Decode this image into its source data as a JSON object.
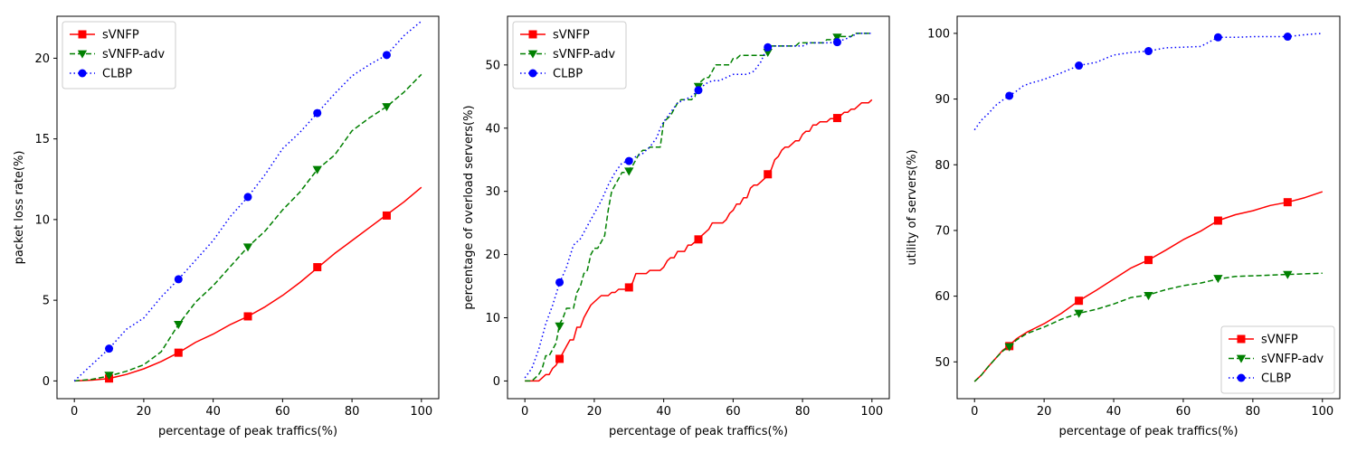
{
  "colors": {
    "sVNFP": "#ff0000",
    "sVNFP-adv": "#008000",
    "CLBP": "#0000ff"
  },
  "chart_data": [
    {
      "type": "line",
      "xlabel": "percentage of peak traffics(%)",
      "ylabel": "packet loss rate(%)",
      "xlim": [
        -5,
        105
      ],
      "ylim": [
        -1.1,
        22.6
      ],
      "xticks": [
        0,
        20,
        40,
        60,
        80,
        100
      ],
      "yticks": [
        0,
        5,
        10,
        15,
        20
      ],
      "legend": "top-left",
      "grid": false,
      "series": [
        {
          "name": "sVNFP",
          "line_style": "solid",
          "marker": "square",
          "color": "#ff0000",
          "x": [
            0,
            5,
            10,
            15,
            20,
            25,
            30,
            35,
            40,
            45,
            50,
            55,
            60,
            65,
            70,
            75,
            80,
            85,
            90,
            95,
            100
          ],
          "y": [
            0,
            0.05,
            0.15,
            0.4,
            0.75,
            1.2,
            1.75,
            2.4,
            2.9,
            3.5,
            4.0,
            4.6,
            5.3,
            6.1,
            7.0,
            7.9,
            8.7,
            9.5,
            10.3,
            11.1,
            12.0
          ],
          "markers_x": [
            10,
            30,
            50,
            70,
            90
          ],
          "markers_y": [
            0.15,
            1.75,
            4.0,
            7.05,
            10.25
          ]
        },
        {
          "name": "sVNFP-adv",
          "line_style": "dashed",
          "marker": "triangle-down",
          "color": "#008000",
          "x": [
            0,
            5,
            10,
            15,
            20,
            25,
            30,
            35,
            40,
            45,
            50,
            55,
            60,
            65,
            70,
            75,
            80,
            85,
            90,
            95,
            100
          ],
          "y": [
            0,
            0.1,
            0.3,
            0.6,
            1.0,
            1.8,
            3.5,
            4.9,
            5.9,
            7.1,
            8.3,
            9.3,
            10.6,
            11.7,
            13.1,
            14.0,
            15.5,
            16.3,
            17.0,
            17.9,
            19.0
          ],
          "markers_x": [
            10,
            30,
            50,
            70,
            90
          ],
          "markers_y": [
            0.35,
            3.5,
            8.3,
            13.1,
            17.0
          ]
        },
        {
          "name": "CLBP",
          "line_style": "dotted",
          "marker": "circle",
          "color": "#0000ff",
          "x": [
            0,
            5,
            10,
            15,
            20,
            25,
            30,
            35,
            40,
            45,
            50,
            55,
            60,
            65,
            70,
            75,
            80,
            85,
            90,
            95,
            100
          ],
          "y": [
            0,
            1.0,
            2.0,
            3.2,
            3.9,
            5.2,
            6.3,
            7.5,
            8.7,
            10.2,
            11.4,
            12.8,
            14.4,
            15.4,
            16.6,
            17.8,
            18.9,
            19.6,
            20.2,
            21.4,
            22.3
          ],
          "markers_x": [
            10,
            30,
            50,
            70,
            90
          ],
          "markers_y": [
            2.0,
            6.3,
            11.4,
            16.6,
            20.2
          ]
        }
      ]
    },
    {
      "type": "line",
      "xlabel": "percentage of peak traffics(%)",
      "ylabel": "percentage of overload servers(%)",
      "xlim": [
        -5,
        105
      ],
      "ylim": [
        -2.8,
        57.7
      ],
      "xticks": [
        0,
        20,
        40,
        60,
        80,
        100
      ],
      "yticks": [
        0,
        10,
        20,
        30,
        40,
        50
      ],
      "legend": "top-left",
      "grid": false,
      "series": [
        {
          "name": "sVNFP",
          "line_style": "solid",
          "marker": "square",
          "color": "#ff0000",
          "x": [
            0,
            2,
            4,
            5,
            6,
            7,
            8,
            9,
            10,
            11,
            12,
            13,
            14,
            15,
            16,
            17,
            18,
            19,
            20,
            21,
            22,
            23,
            24,
            25,
            26,
            27,
            28,
            29,
            30,
            31,
            32,
            33,
            34,
            35,
            36,
            37,
            38,
            39,
            40,
            41,
            42,
            43,
            44,
            45,
            46,
            47,
            48,
            49,
            50,
            51,
            52,
            53,
            54,
            55,
            56,
            57,
            58,
            59,
            60,
            61,
            62,
            63,
            64,
            65,
            66,
            67,
            68,
            69,
            70,
            71,
            72,
            73,
            74,
            75,
            76,
            77,
            78,
            79,
            80,
            81,
            82,
            83,
            84,
            85,
            86,
            87,
            88,
            89,
            90,
            91,
            92,
            93,
            94,
            95,
            96,
            97,
            98,
            99,
            100
          ],
          "y": [
            0,
            0,
            0,
            0.5,
            1,
            1,
            2,
            2.5,
            3.5,
            4.5,
            5.5,
            6.5,
            6.5,
            8.5,
            8.5,
            10,
            11,
            12,
            12.5,
            13,
            13.5,
            13.5,
            13.5,
            14,
            14,
            14.5,
            14.5,
            14.5,
            15,
            15.5,
            17,
            17,
            17,
            17,
            17.5,
            17.5,
            17.5,
            17.5,
            18,
            19,
            19.5,
            19.5,
            20.5,
            20.5,
            20.5,
            21.5,
            21.5,
            22,
            22.5,
            23,
            23.5,
            24,
            25,
            25,
            25,
            25,
            25.5,
            26.5,
            27,
            28,
            28,
            29,
            29,
            30.5,
            31,
            31,
            31.5,
            32,
            32.5,
            33.5,
            35,
            35.5,
            36.5,
            37,
            37,
            37.5,
            38,
            38,
            39,
            39.5,
            39.5,
            40.5,
            40.5,
            41,
            41,
            41,
            41.5,
            41.5,
            41.5,
            42,
            42.5,
            42.5,
            43,
            43,
            43.5,
            44,
            44,
            44,
            44.5
          ],
          "markers_x": [
            10,
            30,
            50,
            70,
            90
          ],
          "markers_y": [
            3.5,
            14.8,
            22.4,
            32.7,
            41.6
          ]
        },
        {
          "name": "sVNFP-adv",
          "line_style": "dashed",
          "marker": "triangle-down",
          "color": "#008000",
          "x": [
            0,
            2,
            3,
            4,
            5,
            6,
            7,
            8,
            9,
            10,
            11,
            12,
            13,
            14,
            15,
            16,
            17,
            18,
            19,
            20,
            21,
            22,
            23,
            24,
            25,
            26,
            27,
            28,
            29,
            30,
            31,
            32,
            33,
            34,
            35,
            36,
            37,
            38,
            39,
            40,
            41,
            42,
            43,
            44,
            45,
            46,
            47,
            48,
            49,
            50,
            51,
            52,
            53,
            54,
            55,
            56,
            57,
            58,
            59,
            60,
            61,
            62,
            63,
            64,
            65,
            66,
            67,
            68,
            69,
            70,
            71,
            72,
            73,
            74,
            75,
            76,
            77,
            78,
            79,
            80,
            81,
            82,
            83,
            84,
            85,
            86,
            87,
            88,
            89,
            90,
            91,
            92,
            93,
            94,
            95,
            96,
            97,
            98,
            99,
            100
          ],
          "y": [
            0,
            0,
            0.5,
            1,
            2,
            4,
            4,
            5,
            6,
            9,
            10,
            11.5,
            11.5,
            11.5,
            14,
            15,
            17,
            17.5,
            20,
            21,
            21,
            22,
            23,
            27,
            30,
            31,
            32,
            33,
            33,
            33.5,
            34,
            35,
            36,
            36.5,
            36.5,
            37,
            37,
            37,
            37,
            41,
            41.5,
            42,
            43,
            44,
            44.5,
            44.5,
            44.5,
            44.5,
            45,
            47,
            47.5,
            48,
            48,
            49,
            50,
            50,
            50,
            50,
            50,
            51,
            51,
            51.5,
            51.5,
            51.5,
            51.5,
            51.5,
            51.5,
            51.5,
            51.5,
            52,
            53,
            53,
            53,
            53,
            53,
            53,
            53,
            53,
            53.5,
            53.5,
            53.5,
            53.5,
            53.5,
            53.5,
            53.5,
            53.5,
            54,
            54,
            54,
            54.5,
            54.5,
            54.5,
            54.5,
            54.5,
            55,
            55,
            55,
            55,
            55,
            55
          ],
          "markers_x": [
            10,
            30,
            50,
            70,
            90
          ],
          "markers_y": [
            8.7,
            33.2,
            46.6,
            52.0,
            54.4
          ]
        },
        {
          "name": "CLBP",
          "line_style": "dotted",
          "marker": "circle",
          "color": "#0000ff",
          "x": [
            0,
            2,
            4,
            6,
            8,
            10,
            12,
            14,
            16,
            18,
            20,
            22,
            24,
            26,
            28,
            30,
            32,
            34,
            36,
            38,
            39,
            40,
            42,
            44,
            46,
            48,
            50,
            52,
            54,
            56,
            58,
            60,
            62,
            64,
            66,
            68,
            70,
            72,
            74,
            76,
            78,
            80,
            82,
            84,
            86,
            88,
            90,
            92,
            94,
            96,
            98,
            100
          ],
          "y": [
            0.5,
            2,
            5,
            9,
            12,
            15.5,
            18,
            21.5,
            22.5,
            24.5,
            26.5,
            28.5,
            31,
            33,
            34.5,
            34.8,
            35.5,
            36,
            37,
            38.5,
            40,
            41,
            42.5,
            44,
            44.5,
            45,
            46,
            47,
            47.5,
            47.5,
            48,
            48.5,
            48.5,
            48.5,
            49,
            50.5,
            53,
            53,
            53,
            53,
            53,
            53,
            53.5,
            53.5,
            53.5,
            53.5,
            53.8,
            54,
            54.5,
            55,
            55,
            55
          ],
          "markers_x": [
            10,
            30,
            50,
            70,
            90
          ],
          "markers_y": [
            15.6,
            34.8,
            46.0,
            52.8,
            53.6
          ]
        }
      ]
    },
    {
      "type": "line",
      "xlabel": "percentage of peak traffics(%)",
      "ylabel": "utility of servers(%)",
      "xlim": [
        -5,
        105
      ],
      "ylim": [
        44.4,
        102.6
      ],
      "xticks": [
        0,
        20,
        40,
        60,
        80,
        100
      ],
      "yticks": [
        50,
        60,
        70,
        80,
        90,
        100
      ],
      "legend": "bottom-right",
      "grid": false,
      "series": [
        {
          "name": "sVNFP",
          "line_style": "solid",
          "marker": "square",
          "color": "#ff0000",
          "x": [
            0,
            2,
            4,
            6,
            8,
            10,
            12,
            15,
            20,
            25,
            30,
            35,
            40,
            45,
            50,
            55,
            60,
            65,
            70,
            75,
            80,
            85,
            90,
            95,
            100
          ],
          "y": [
            47,
            48,
            49.3,
            50.5,
            51.7,
            52.5,
            53.5,
            54.5,
            55.8,
            57.4,
            59.3,
            60.9,
            62.6,
            64.3,
            65.5,
            67.0,
            68.6,
            69.9,
            71.5,
            72.4,
            73.0,
            73.8,
            74.3,
            75.0,
            75.9
          ],
          "markers_x": [
            10,
            30,
            50,
            70,
            90
          ],
          "markers_y": [
            52.4,
            59.3,
            65.5,
            71.5,
            74.3
          ]
        },
        {
          "name": "sVNFP-adv",
          "line_style": "dashed",
          "marker": "triangle-down",
          "color": "#008000",
          "x": [
            0,
            2,
            4,
            6,
            8,
            10,
            12,
            15,
            20,
            25,
            30,
            35,
            40,
            45,
            50,
            55,
            60,
            65,
            70,
            75,
            80,
            85,
            90,
            95,
            100
          ],
          "y": [
            47,
            48,
            49.3,
            50.5,
            51.6,
            52.4,
            53.3,
            54.3,
            55.3,
            56.5,
            57.4,
            58.0,
            58.8,
            59.8,
            60.2,
            61.0,
            61.6,
            62.0,
            62.6,
            63.0,
            63.1,
            63.2,
            63.3,
            63.4,
            63.5
          ],
          "markers_x": [
            10,
            30,
            50,
            70,
            90
          ],
          "markers_y": [
            52.3,
            57.4,
            60.1,
            62.7,
            63.3
          ]
        },
        {
          "name": "CLBP",
          "line_style": "dotted",
          "marker": "circle",
          "color": "#0000ff",
          "x": [
            0,
            2,
            4,
            6,
            8,
            10,
            12,
            14,
            16,
            20,
            25,
            30,
            35,
            40,
            45,
            50,
            55,
            60,
            65,
            70,
            75,
            80,
            85,
            90,
            95,
            100
          ],
          "y": [
            85.3,
            86.8,
            87.8,
            89.0,
            89.8,
            90.5,
            91.2,
            92.0,
            92.4,
            93.0,
            94.0,
            95.1,
            95.6,
            96.7,
            97.1,
            97.3,
            97.8,
            97.9,
            98.0,
            99.4,
            99.4,
            99.5,
            99.5,
            99.5,
            99.8,
            100.0
          ],
          "markers_x": [
            10,
            30,
            50,
            70,
            90
          ],
          "markers_y": [
            90.5,
            95.1,
            97.3,
            99.4,
            99.5
          ]
        }
      ]
    }
  ]
}
